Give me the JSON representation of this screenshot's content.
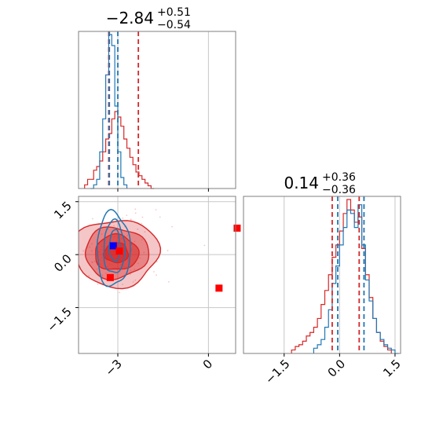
{
  "chart_data": {
    "type": "corner",
    "colors": {
      "series_a": "#1f77b4",
      "series_b": "#d62728",
      "marker_blue": "#0000ff",
      "marker_red": "#ff0000",
      "grid": "#c8c8c8"
    },
    "param1": {
      "title": {
        "median": "−2.84",
        "plus": "+0.51",
        "minus": "−0.54"
      },
      "xlim": [
        -4.3,
        0.9
      ],
      "ticks": [
        {
          "v": -3,
          "label": "−3"
        },
        {
          "v": 0,
          "label": "0"
        }
      ],
      "quantiles_blue": [
        -3.28,
        -3.0
      ],
      "quantiles_red": [
        -3.3,
        -2.32
      ],
      "hist_blue": {
        "edges": [
          -3.9,
          -3.8,
          -3.7,
          -3.6,
          -3.5,
          -3.4,
          -3.3,
          -3.2,
          -3.1,
          -3.0,
          -2.9,
          -2.8,
          -2.7
        ],
        "counts": [
          0,
          0.02,
          0.05,
          0.2,
          0.38,
          0.62,
          0.84,
          0.78,
          0.45,
          0.2,
          0.06,
          0.02
        ]
      },
      "hist_red": {
        "edges": [
          -4.1,
          -4.0,
          -3.9,
          -3.8,
          -3.7,
          -3.6,
          -3.5,
          -3.4,
          -3.3,
          -3.2,
          -3.1,
          -3.0,
          -2.9,
          -2.8,
          -2.7,
          -2.6,
          -2.5,
          -2.4,
          -2.3,
          -2.2,
          -2.1,
          -2.0,
          -1.9,
          -1.8
        ],
        "counts": [
          0.02,
          0.05,
          0.05,
          0.1,
          0.12,
          0.15,
          0.2,
          0.27,
          0.3,
          0.38,
          0.42,
          0.39,
          0.34,
          0.27,
          0.22,
          0.17,
          0.13,
          0.09,
          0.07,
          0.05,
          0.03,
          0.015,
          0
        ]
      }
    },
    "param2": {
      "title": {
        "median": "0.14",
        "plus": "+0.36",
        "minus": "−0.36"
      },
      "xlim": [
        -2.6,
        1.65
      ],
      "ticks": [
        {
          "v": -1.5,
          "label": "−1.5"
        },
        {
          "v": 0.0,
          "label": "0.0"
        },
        {
          "v": 1.5,
          "label": "1.5"
        }
      ],
      "quantiles_blue": [
        -0.05,
        0.66
      ],
      "quantiles_red": [
        -0.2,
        0.53
      ],
      "hist_blue": {
        "edges": [
          -0.7,
          -0.6,
          -0.5,
          -0.4,
          -0.3,
          -0.2,
          -0.1,
          0.0,
          0.1,
          0.2,
          0.3,
          0.4,
          0.5,
          0.6,
          0.7,
          0.8,
          0.9,
          1.0,
          1.1,
          1.2,
          1.3,
          1.4,
          1.5,
          1.6
        ],
        "counts": [
          0.03,
          0.05,
          0.08,
          0.15,
          0.25,
          0.4,
          0.5,
          0.62,
          0.72,
          0.82,
          0.8,
          0.72,
          0.85,
          0.62,
          0.42,
          0.3,
          0.2,
          0.12,
          0.08,
          0.05,
          0.03,
          0.02,
          0
        ]
      },
      "hist_red": {
        "edges": [
          -1.3,
          -1.2,
          -1.1,
          -1.0,
          -0.9,
          -0.8,
          -0.7,
          -0.6,
          -0.5,
          -0.4,
          -0.3,
          -0.2,
          -0.1,
          0.0,
          0.1,
          0.2,
          0.3,
          0.4,
          0.5,
          0.6,
          0.7,
          0.8,
          0.9,
          1.0,
          1.1,
          1.2,
          1.3,
          1.4
        ],
        "counts": [
          0.02,
          0.04,
          0.05,
          0.07,
          0.1,
          0.12,
          0.15,
          0.2,
          0.28,
          0.36,
          0.45,
          0.55,
          0.62,
          0.7,
          0.8,
          0.88,
          0.82,
          0.75,
          0.78,
          0.6,
          0.45,
          0.32,
          0.2,
          0.12,
          0.07,
          0.04,
          0.02
        ]
      }
    },
    "scatter": {
      "ylim": [
        -2.8,
        1.65
      ],
      "yticks": [
        {
          "v": -1.5,
          "label": "−1.5"
        },
        {
          "v": 0.0,
          "label": "0.0"
        },
        {
          "v": 1.5,
          "label": "1.5"
        }
      ],
      "markers": [
        {
          "x": -3.15,
          "y": 0.25,
          "color": "marker_blue"
        },
        {
          "x": -2.95,
          "y": 0.1,
          "color": "marker_red"
        },
        {
          "x": -3.25,
          "y": -0.65,
          "color": "marker_red"
        },
        {
          "x": 0.35,
          "y": -0.95,
          "color": "marker_red"
        },
        {
          "x": 0.95,
          "y": 0.75,
          "color": "marker_red"
        }
      ],
      "contours_red": [
        {
          "cx": -3.05,
          "cy": 0.05,
          "rx": 1.4,
          "ry": 0.95,
          "fill": 0.35
        },
        {
          "cx": -3.05,
          "cy": 0.05,
          "rx": 1.05,
          "ry": 0.72,
          "fill": 0.55
        },
        {
          "cx": -3.05,
          "cy": 0.05,
          "rx": 0.72,
          "ry": 0.5,
          "fill": 0.75
        },
        {
          "cx": -3.05,
          "cy": 0.05,
          "rx": 0.4,
          "ry": 0.28,
          "fill": 0.95
        }
      ],
      "contours_blue": [
        {
          "cx": -3.15,
          "cy": 0.15,
          "rx": 0.55,
          "ry": 1.05
        },
        {
          "cx": -3.12,
          "cy": 0.2,
          "rx": 0.35,
          "ry": 0.75
        },
        {
          "cx": -3.1,
          "cy": 0.25,
          "rx": 0.18,
          "ry": 0.45
        }
      ]
    }
  }
}
